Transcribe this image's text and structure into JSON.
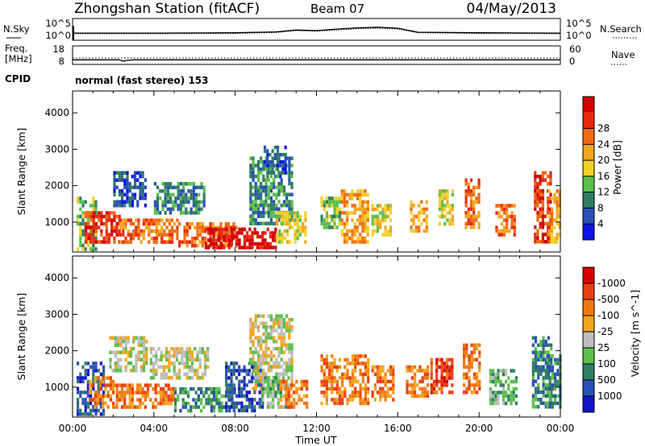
{
  "header": {
    "title": "Zhongshan Station (fitACF)",
    "beam": "Beam 07",
    "date": "04/May/2013"
  },
  "top_panels": {
    "nsky_label": "N.Sky",
    "nsky_ticks": [
      "10^5",
      "10^0"
    ],
    "nsearch_label": "N.Search",
    "nsearch_ticks": [
      "10^5",
      "10^0"
    ],
    "freq_label": [
      "Freq.",
      "[MHz]"
    ],
    "freq_ticks": [
      "18",
      "8"
    ],
    "nave_label": "Nave",
    "nave_ticks": [
      "60",
      "0"
    ],
    "cpid_label": "CPID",
    "cpid_value": "normal (fast stereo) 153"
  },
  "x_axis": {
    "ticks": [
      "00:00",
      "04:00",
      "08:00",
      "12:00",
      "16:00",
      "20:00",
      "00:00"
    ],
    "label": "Time UT"
  },
  "chart_data": [
    {
      "type": "line",
      "name": "noise-panel",
      "series": [
        {
          "name": "N.Sky",
          "x": [
            0,
            4,
            8,
            10,
            11,
            12,
            13,
            14,
            15,
            16,
            17,
            20,
            24
          ],
          "y": [
            0.3,
            0.3,
            0.4,
            0.7,
            1.3,
            1.1,
            1.6,
            2.0,
            2.2,
            1.9,
            0.6,
            0.4,
            0.3
          ]
        },
        {
          "name": "N.Search",
          "x": [
            0,
            4,
            8,
            10,
            11,
            12,
            13,
            14,
            15,
            16,
            17,
            20,
            24
          ],
          "y": [
            0.1,
            0.1,
            0.2,
            0.5,
            1.1,
            0.9,
            1.3,
            1.7,
            1.9,
            1.6,
            0.4,
            0.2,
            0.1
          ]
        }
      ]
    },
    {
      "type": "line",
      "name": "freq-nave-panel",
      "series": [
        {
          "name": "Freq.",
          "x": [
            0,
            2.3,
            2.5,
            2.7,
            3.0,
            24
          ],
          "y": [
            10.5,
            10.5,
            9.8,
            10.2,
            10.5,
            10.5
          ]
        },
        {
          "name": "Nave",
          "x": [
            0,
            24
          ],
          "y": [
            21,
            21
          ]
        }
      ]
    },
    {
      "type": "heatmap",
      "name": "power",
      "ylabel": "Slant Range [km]",
      "ylim": [
        180,
        4600
      ],
      "yticks": [
        1000,
        2000,
        3000,
        4000
      ],
      "xlim": [
        0,
        24
      ],
      "colorbar": {
        "label": "Power [dB]",
        "ticks": [
          "4",
          "8",
          "12",
          "16",
          "20",
          "24",
          "28"
        ],
        "colors": [
          "#0a14e6",
          "#2a4fb5",
          "#2f7d62",
          "#5bbf4a",
          "#f2d12a",
          "#f2a51e",
          "#ef6b12",
          "#e82a10",
          "#d10000"
        ]
      },
      "regions": [
        {
          "t0": 0.2,
          "t1": 1.2,
          "r0": 300,
          "r1": 1700,
          "v": 3
        },
        {
          "t0": 0.6,
          "t1": 2.3,
          "r0": 500,
          "r1": 1300,
          "v": 7
        },
        {
          "t0": 2.0,
          "t1": 3.6,
          "r0": 1500,
          "r1": 2400,
          "v": 1
        },
        {
          "t0": 2.3,
          "t1": 5.2,
          "r0": 450,
          "r1": 1100,
          "v": 6
        },
        {
          "t0": 4.0,
          "t1": 6.5,
          "r0": 1300,
          "r1": 2100,
          "v": 2
        },
        {
          "t0": 5.2,
          "t1": 8.0,
          "r0": 400,
          "r1": 1000,
          "v": 6
        },
        {
          "t0": 6.5,
          "t1": 10.0,
          "r0": 300,
          "r1": 850,
          "v": 8
        },
        {
          "t0": 8.7,
          "t1": 10.8,
          "r0": 1000,
          "r1": 2800,
          "v": 2
        },
        {
          "t0": 9.4,
          "t1": 10.5,
          "r0": 2300,
          "r1": 3100,
          "v": 1
        },
        {
          "t0": 10.0,
          "t1": 11.5,
          "r0": 450,
          "r1": 1300,
          "v": 4
        },
        {
          "t0": 12.2,
          "t1": 13.2,
          "r0": 900,
          "r1": 1700,
          "v": 3
        },
        {
          "t0": 13.2,
          "t1": 14.5,
          "r0": 500,
          "r1": 1900,
          "v": 5
        },
        {
          "t0": 14.7,
          "t1": 15.6,
          "r0": 700,
          "r1": 1500,
          "v": 4
        },
        {
          "t0": 16.6,
          "t1": 17.4,
          "r0": 800,
          "r1": 1600,
          "v": 5
        },
        {
          "t0": 18.0,
          "t1": 18.7,
          "r0": 1000,
          "r1": 1900,
          "v": 4
        },
        {
          "t0": 19.3,
          "t1": 20.0,
          "r0": 900,
          "r1": 2200,
          "v": 6
        },
        {
          "t0": 20.8,
          "t1": 21.7,
          "r0": 700,
          "r1": 1500,
          "v": 6
        },
        {
          "t0": 22.7,
          "t1": 23.5,
          "r0": 500,
          "r1": 2400,
          "v": 7
        },
        {
          "t0": 23.4,
          "t1": 24.0,
          "r0": 500,
          "r1": 1900,
          "v": 5
        }
      ]
    },
    {
      "type": "heatmap",
      "name": "velocity",
      "ylabel": "Slant Range [km]",
      "ylim": [
        180,
        4600
      ],
      "yticks": [
        1000,
        2000,
        3000,
        4000
      ],
      "xlim": [
        0,
        24
      ],
      "colorbar": {
        "label": "Velocity [m s^-1]",
        "ticks": [
          "1000",
          "500",
          "100",
          "25",
          "-25",
          "-100",
          "-500",
          "-1000"
        ],
        "colors": [
          "#1414c8",
          "#2a4fb5",
          "#2f7d62",
          "#5bbf4a",
          "#bdbdbd",
          "#f2a51e",
          "#ef7a12",
          "#e84010",
          "#d80000"
        ]
      },
      "regions": [
        {
          "t0": 0.2,
          "t1": 1.5,
          "r0": 300,
          "r1": 1700,
          "v": 1
        },
        {
          "t0": 0.8,
          "t1": 2.0,
          "r0": 500,
          "r1": 1300,
          "v": 6
        },
        {
          "t0": 1.8,
          "t1": 3.6,
          "r0": 1500,
          "r1": 2400,
          "v": 4
        },
        {
          "t0": 2.0,
          "t1": 5.0,
          "r0": 450,
          "r1": 1100,
          "v": 6
        },
        {
          "t0": 3.8,
          "t1": 6.6,
          "r0": 1300,
          "r1": 2100,
          "v": 4
        },
        {
          "t0": 5.0,
          "t1": 8.0,
          "r0": 400,
          "r1": 1000,
          "v": 2
        },
        {
          "t0": 7.5,
          "t1": 9.3,
          "r0": 400,
          "r1": 1700,
          "v": 1
        },
        {
          "t0": 8.7,
          "t1": 10.8,
          "r0": 1000,
          "r1": 3000,
          "v": 4
        },
        {
          "t0": 9.3,
          "t1": 10.6,
          "r0": 500,
          "r1": 1300,
          "v": 3
        },
        {
          "t0": 10.2,
          "t1": 11.5,
          "r0": 500,
          "r1": 1200,
          "v": 6
        },
        {
          "t0": 12.2,
          "t1": 14.6,
          "r0": 600,
          "r1": 1900,
          "v": 6
        },
        {
          "t0": 14.7,
          "t1": 15.8,
          "r0": 700,
          "r1": 1600,
          "v": 6
        },
        {
          "t0": 16.4,
          "t1": 17.5,
          "r0": 800,
          "r1": 1600,
          "v": 6
        },
        {
          "t0": 17.6,
          "t1": 18.7,
          "r0": 900,
          "r1": 1800,
          "v": 7
        },
        {
          "t0": 19.2,
          "t1": 20.0,
          "r0": 900,
          "r1": 2200,
          "v": 6
        },
        {
          "t0": 20.5,
          "t1": 21.8,
          "r0": 600,
          "r1": 1500,
          "v": 3
        },
        {
          "t0": 22.6,
          "t1": 23.5,
          "r0": 500,
          "r1": 2400,
          "v": 2
        },
        {
          "t0": 23.3,
          "t1": 24.0,
          "r0": 500,
          "r1": 1900,
          "v": 2
        }
      ]
    }
  ]
}
